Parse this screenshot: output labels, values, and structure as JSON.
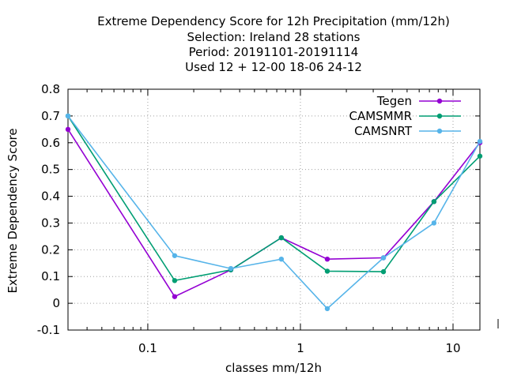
{
  "chart_data": {
    "type": "line",
    "title_lines": [
      "Extreme Dependency Score  for 12h Precipitation (mm/12h)",
      "Selection: Ireland      28 stations",
      "Period: 20191101-20191114",
      "Used  12 + 12-00 18-06 24-12"
    ],
    "xlabel": "classes mm/12h",
    "ylabel": "Extreme Dependency Score",
    "x_scale": "log",
    "xlim": [
      0.03,
      15
    ],
    "ylim": [
      -0.1,
      0.8
    ],
    "x_ticks": [
      0.1,
      1,
      10
    ],
    "x_tick_labels": [
      "0.1",
      "1",
      "10"
    ],
    "y_ticks": [
      -0.1,
      0,
      0.1,
      0.2,
      0.3,
      0.4,
      0.5,
      0.6,
      0.7,
      0.8
    ],
    "y_tick_labels": [
      "-0.1",
      "0",
      "0.1",
      "0.2",
      "0.3",
      "0.4",
      "0.5",
      "0.6",
      "0.7",
      "0.8"
    ],
    "grid": true,
    "legend_position": "top-right",
    "x": [
      0.03,
      0.15,
      0.35,
      0.75,
      1.5,
      3.5,
      7.5,
      15
    ],
    "series": [
      {
        "name": "Tegen",
        "color": "#9400d3",
        "values": [
          0.65,
          0.025,
          0.125,
          0.245,
          0.165,
          0.17,
          0.38,
          0.6
        ]
      },
      {
        "name": "CAMSMMR",
        "color": "#009e73",
        "values": [
          0.7,
          0.085,
          0.125,
          0.245,
          0.12,
          0.118,
          0.38,
          0.55
        ]
      },
      {
        "name": "CAMSNRT",
        "color": "#56b4e9",
        "values": [
          0.7,
          0.178,
          0.13,
          0.165,
          -0.02,
          0.17,
          0.3,
          0.605
        ]
      }
    ]
  }
}
